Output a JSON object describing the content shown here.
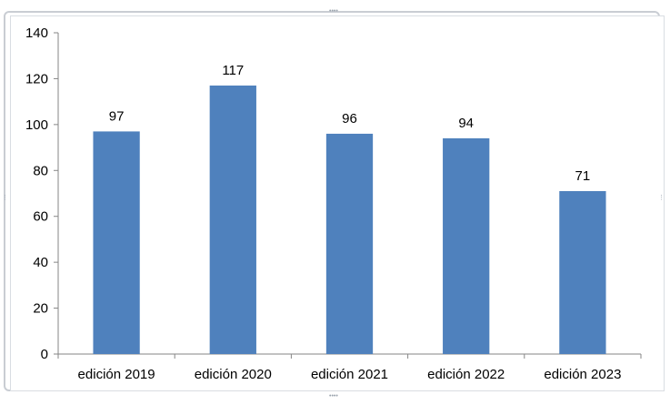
{
  "chart_data": {
    "type": "bar",
    "categories": [
      "edición 2019",
      "edición 2020",
      "edición 2021",
      "edición 2022",
      "edición 2023"
    ],
    "values": [
      97,
      117,
      96,
      94,
      71
    ],
    "ylim": [
      0,
      140
    ],
    "yticks": [
      "0",
      "20",
      "40",
      "60",
      "80",
      "100",
      "120",
      "140"
    ],
    "title": "",
    "xlabel": "",
    "ylabel": "",
    "grid": false,
    "legend": "none",
    "bar_color": "#4f81bd",
    "data_labels": true
  }
}
